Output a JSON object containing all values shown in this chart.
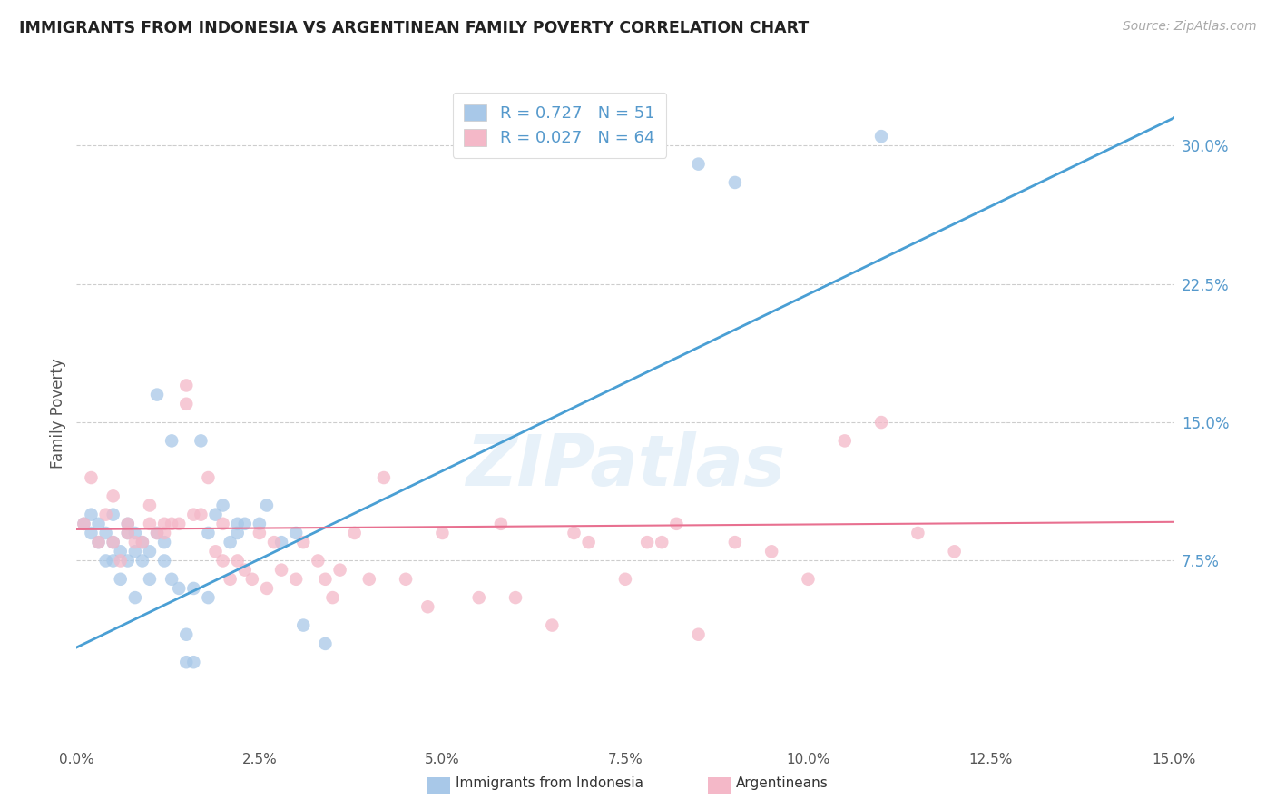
{
  "title": "IMMIGRANTS FROM INDONESIA VS ARGENTINEAN FAMILY POVERTY CORRELATION CHART",
  "source": "Source: ZipAtlas.com",
  "ylabel": "Family Poverty",
  "right_yticks": [
    "30.0%",
    "22.5%",
    "15.0%",
    "7.5%"
  ],
  "right_ytick_vals": [
    0.3,
    0.225,
    0.15,
    0.075
  ],
  "xlim": [
    0.0,
    0.15
  ],
  "ylim": [
    -0.025,
    0.335
  ],
  "legend_r1": "R = 0.727   N = 51",
  "legend_r2": "R = 0.027   N = 64",
  "blue_color": "#a8c8e8",
  "pink_color": "#f4b8c8",
  "line_blue": "#4a9fd4",
  "line_pink": "#e87090",
  "watermark": "ZIPatlas",
  "blue_scatter_x": [
    0.001,
    0.002,
    0.002,
    0.003,
    0.003,
    0.004,
    0.004,
    0.005,
    0.005,
    0.005,
    0.006,
    0.006,
    0.007,
    0.007,
    0.007,
    0.008,
    0.008,
    0.008,
    0.009,
    0.009,
    0.01,
    0.01,
    0.011,
    0.011,
    0.012,
    0.012,
    0.013,
    0.013,
    0.014,
    0.015,
    0.015,
    0.016,
    0.016,
    0.017,
    0.018,
    0.018,
    0.019,
    0.02,
    0.021,
    0.022,
    0.022,
    0.023,
    0.025,
    0.026,
    0.028,
    0.03,
    0.031,
    0.034,
    0.085,
    0.09,
    0.11
  ],
  "blue_scatter_y": [
    0.095,
    0.09,
    0.1,
    0.095,
    0.085,
    0.075,
    0.09,
    0.075,
    0.085,
    0.1,
    0.065,
    0.08,
    0.075,
    0.09,
    0.095,
    0.055,
    0.08,
    0.09,
    0.075,
    0.085,
    0.065,
    0.08,
    0.165,
    0.09,
    0.075,
    0.085,
    0.065,
    0.14,
    0.06,
    0.02,
    0.035,
    0.02,
    0.06,
    0.14,
    0.055,
    0.09,
    0.1,
    0.105,
    0.085,
    0.095,
    0.09,
    0.095,
    0.095,
    0.105,
    0.085,
    0.09,
    0.04,
    0.03,
    0.29,
    0.28,
    0.305
  ],
  "pink_scatter_x": [
    0.001,
    0.002,
    0.003,
    0.004,
    0.005,
    0.005,
    0.006,
    0.007,
    0.007,
    0.008,
    0.009,
    0.01,
    0.01,
    0.011,
    0.012,
    0.012,
    0.013,
    0.014,
    0.015,
    0.015,
    0.016,
    0.017,
    0.018,
    0.019,
    0.02,
    0.02,
    0.021,
    0.022,
    0.023,
    0.024,
    0.025,
    0.026,
    0.027,
    0.028,
    0.03,
    0.031,
    0.033,
    0.034,
    0.035,
    0.036,
    0.038,
    0.04,
    0.042,
    0.045,
    0.048,
    0.05,
    0.055,
    0.058,
    0.06,
    0.065,
    0.068,
    0.07,
    0.075,
    0.078,
    0.08,
    0.082,
    0.085,
    0.09,
    0.095,
    0.1,
    0.105,
    0.11,
    0.115,
    0.12
  ],
  "pink_scatter_y": [
    0.095,
    0.12,
    0.085,
    0.1,
    0.085,
    0.11,
    0.075,
    0.09,
    0.095,
    0.085,
    0.085,
    0.095,
    0.105,
    0.09,
    0.09,
    0.095,
    0.095,
    0.095,
    0.16,
    0.17,
    0.1,
    0.1,
    0.12,
    0.08,
    0.095,
    0.075,
    0.065,
    0.075,
    0.07,
    0.065,
    0.09,
    0.06,
    0.085,
    0.07,
    0.065,
    0.085,
    0.075,
    0.065,
    0.055,
    0.07,
    0.09,
    0.065,
    0.12,
    0.065,
    0.05,
    0.09,
    0.055,
    0.095,
    0.055,
    0.04,
    0.09,
    0.085,
    0.065,
    0.085,
    0.085,
    0.095,
    0.035,
    0.085,
    0.08,
    0.065,
    0.14,
    0.15,
    0.09,
    0.08
  ],
  "blue_line_x": [
    0.0,
    0.15
  ],
  "blue_line_y": [
    0.028,
    0.315
  ],
  "pink_line_x": [
    0.0,
    0.15
  ],
  "pink_line_y": [
    0.092,
    0.096
  ],
  "background_color": "#ffffff",
  "grid_color": "#c8c8c8",
  "title_color": "#222222",
  "right_axis_color": "#5599cc",
  "bottom_legend_label1": "Immigrants from Indonesia",
  "bottom_legend_label2": "Argentineans",
  "x_tick_labels": [
    "0.0%",
    "2.5%",
    "5.0%",
    "7.5%",
    "10.0%",
    "12.5%",
    "15.0%"
  ],
  "x_tick_vals": [
    0.0,
    0.025,
    0.05,
    0.075,
    0.1,
    0.125,
    0.15
  ]
}
